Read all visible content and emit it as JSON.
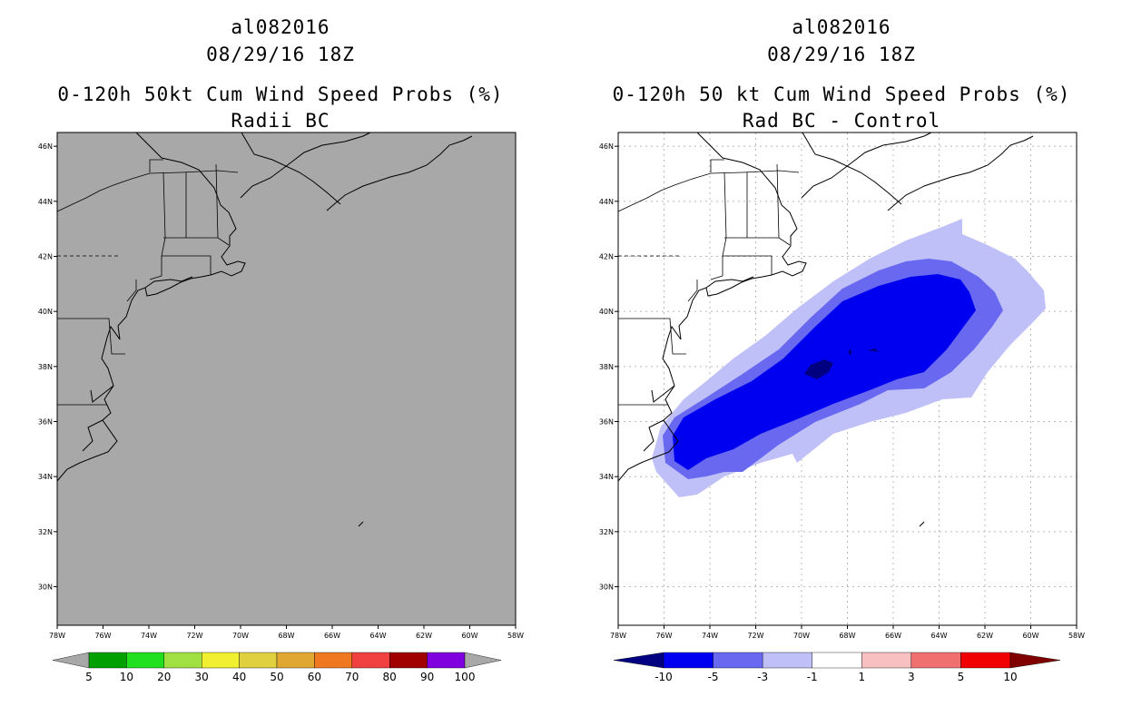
{
  "left_panel": {
    "title_line1": "al082016",
    "title_line2": "08/29/16 18Z",
    "title_line3": "0-120h 50kt Cum Wind Speed Probs (%)",
    "title_line4": "Radii BC",
    "map_fill_color": "#a8a8a8",
    "colorbar": {
      "labels": [
        "5",
        "10",
        "20",
        "30",
        "40",
        "50",
        "60",
        "70",
        "80",
        "90",
        "100"
      ],
      "colors": [
        "#a8a8a8",
        "#00a000",
        "#20e020",
        "#a0e040",
        "#f0f030",
        "#e0d040",
        "#e0a830",
        "#f07820",
        "#f04040",
        "#a00000",
        "#8000e0",
        "#a8a8a8"
      ]
    }
  },
  "right_panel": {
    "title_line1": "al082016",
    "title_line2": "08/29/16 18Z",
    "title_line3": "0-120h 50 kt Cum Wind Speed Probs (%)",
    "title_line4": "Rad BC - Control",
    "colorbar": {
      "labels": [
        "-10",
        "-5",
        "-3",
        "-1",
        "1",
        "3",
        "5",
        "10"
      ],
      "colors": [
        "#000080",
        "#0000f0",
        "#6868f0",
        "#c0c0f8",
        "#ffffff",
        "#f8c0c0",
        "#f07070",
        "#f00000",
        "#800000"
      ]
    },
    "contour_levels": [
      {
        "level": "-1 to -3",
        "color": "#c0c0f8"
      },
      {
        "level": "-3 to -5",
        "color": "#6868f0"
      },
      {
        "level": "-5 to -10",
        "color": "#0000f0"
      },
      {
        "level": "< -10",
        "color": "#000080"
      }
    ]
  },
  "axes": {
    "lon_labels": [
      "78W",
      "76W",
      "74W",
      "72W",
      "70W",
      "68W",
      "66W",
      "64W",
      "62W",
      "60W",
      "58W"
    ],
    "lat_labels": [
      "30N",
      "32N",
      "34N",
      "36N",
      "38N",
      "40N",
      "42N",
      "44N",
      "46N"
    ],
    "lon_range": [
      -78,
      -58
    ],
    "lat_range": [
      28.6,
      46.5
    ]
  }
}
